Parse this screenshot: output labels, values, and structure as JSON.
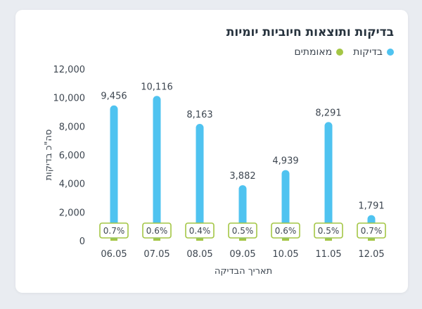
{
  "chart_data": {
    "type": "bar",
    "title": "בדיקות ותוצאות חיוביות יומיות",
    "xlabel": "תאריך הבדיקה",
    "ylabel": "סה\"כ בדיקות",
    "categories": [
      "06.05",
      "07.05",
      "08.05",
      "09.05",
      "10.05",
      "11.05",
      "12.05"
    ],
    "series": [
      {
        "name": "בדיקות",
        "color": "#4fc3f0",
        "values": [
          9456,
          10116,
          8163,
          3882,
          4939,
          8291,
          1791
        ],
        "labels": [
          "9,456",
          "10,116",
          "8,163",
          "3,882",
          "4,939",
          "8,291",
          "1,791"
        ]
      },
      {
        "name": "מאומתים",
        "color": "#a4c645",
        "labels": [
          "0.7%",
          "0.6%",
          "0.4%",
          "0.5%",
          "0.6%",
          "0.5%",
          "0.7%"
        ]
      }
    ],
    "ylim": [
      0,
      12000
    ],
    "yticks": [
      "0",
      "2,000",
      "4,000",
      "6,000",
      "8,000",
      "10,000",
      "12,000"
    ],
    "grid": false,
    "legend": "top-right"
  }
}
